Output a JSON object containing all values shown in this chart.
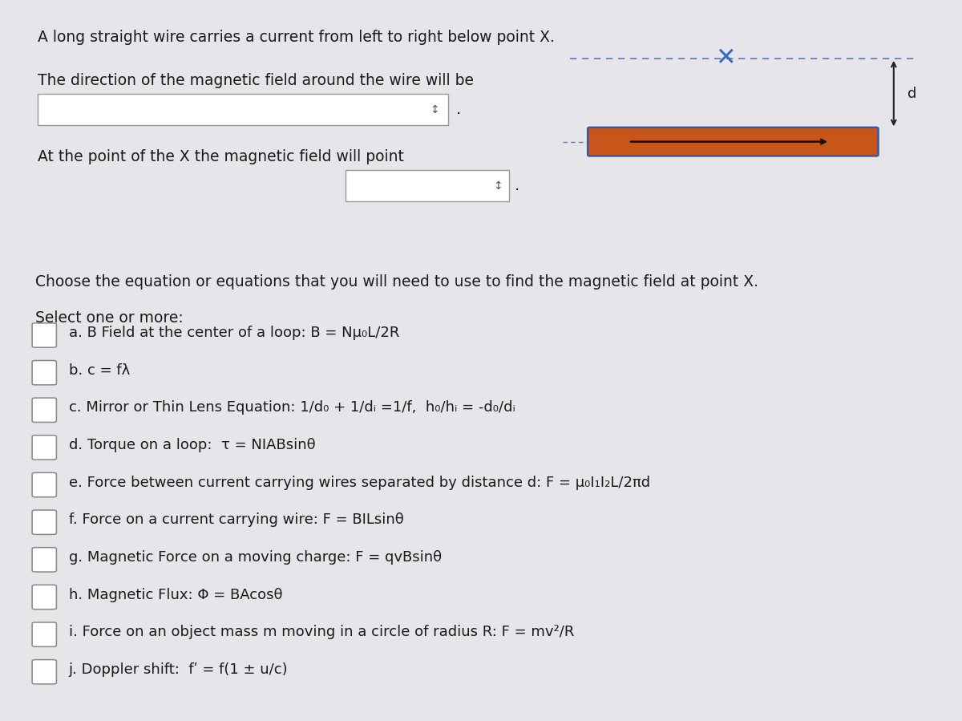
{
  "bg_color": "#e5e5ea",
  "panel_bg": "#ffffff",
  "title_text": "A long straight wire carries a current from left to right below point X.",
  "line2_text": "The direction of the magnetic field around the wire will be",
  "line3_text": "At the point of the X the magnetic field will point",
  "choose_text": "Choose the equation or equations that you will need to use to find the magnetic field at point X.",
  "select_text": "Select one or more:",
  "options": [
    "a. B Field at the center of a loop: B = Nμ₀L/2R",
    "b. c = fλ",
    "c. Mirror or Thin Lens Equation: 1/d₀ + 1/dᵢ =1/f,  h₀/hᵢ = -d₀/dᵢ",
    "d. Torque on a loop:  τ = NIABsinθ",
    "e. Force between current carrying wires separated by distance d: F = μ₀I₁I₂L/2πd",
    "f. Force on a current carrying wire: F = BILsinθ",
    "g. Magnetic Force on a moving charge: F = qvBsinθ",
    "h. Magnetic Flux: Φ = BAcosθ",
    "i. Force on an object mass m moving in a circle of radius R: F = mv²/R",
    "j. Doppler shift:  fʹ = f(1 ± u/c)"
  ],
  "wire_color": "#c8561a",
  "wire_border": "#3a5a9c",
  "dashed_color": "#5a7ab5",
  "x_color": "#3a6abf",
  "arrow_color": "#111111",
  "d_arrow_color": "#222222"
}
